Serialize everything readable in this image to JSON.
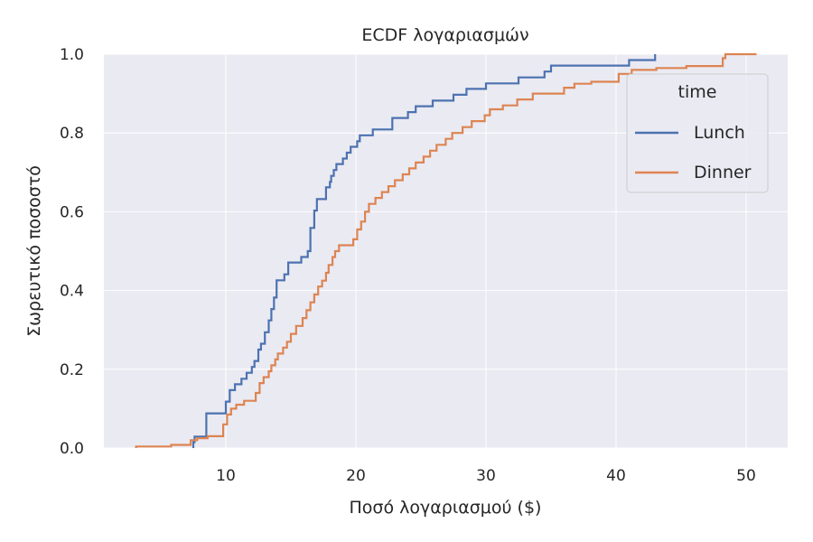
{
  "chart_data": {
    "type": "line",
    "subtype": "ecdf-step",
    "title": "ECDF λογαριασμών",
    "xlabel": "Ποσό λογαριασμού ($)",
    "ylabel": "Σωρευτικό ποσοστό",
    "xlim": [
      0.8,
      53.3
    ],
    "ylim": [
      0.0,
      1.0
    ],
    "xticks": [
      10,
      20,
      30,
      40,
      50
    ],
    "xtick_labels": [
      "10",
      "20",
      "30",
      "40",
      "50"
    ],
    "yticks": [
      0.0,
      0.2,
      0.4,
      0.6,
      0.8,
      1.0
    ],
    "ytick_labels": [
      "0.0",
      "0.2",
      "0.4",
      "0.6",
      "0.8",
      "1.0"
    ],
    "grid": true,
    "background": "#eaeaf2",
    "legend": {
      "title": "time",
      "position": "upper right",
      "entries": [
        {
          "label": "Lunch",
          "color": "#4c72b0"
        },
        {
          "label": "Dinner",
          "color": "#dd8452"
        }
      ]
    },
    "series": [
      {
        "name": "Lunch",
        "color": "#4c72b0",
        "points": [
          [
            7.5,
            0.0
          ],
          [
            7.5,
            0.015
          ],
          [
            7.6,
            0.015
          ],
          [
            7.6,
            0.029
          ],
          [
            8.5,
            0.029
          ],
          [
            8.5,
            0.088
          ],
          [
            10.0,
            0.088
          ],
          [
            10.0,
            0.118
          ],
          [
            10.3,
            0.118
          ],
          [
            10.3,
            0.147
          ],
          [
            10.7,
            0.147
          ],
          [
            10.7,
            0.162
          ],
          [
            11.2,
            0.162
          ],
          [
            11.2,
            0.176
          ],
          [
            11.6,
            0.176
          ],
          [
            11.6,
            0.191
          ],
          [
            12.0,
            0.191
          ],
          [
            12.0,
            0.206
          ],
          [
            12.2,
            0.206
          ],
          [
            12.2,
            0.221
          ],
          [
            12.5,
            0.221
          ],
          [
            12.5,
            0.25
          ],
          [
            12.7,
            0.25
          ],
          [
            12.7,
            0.265
          ],
          [
            13.0,
            0.265
          ],
          [
            13.0,
            0.294
          ],
          [
            13.3,
            0.294
          ],
          [
            13.3,
            0.324
          ],
          [
            13.5,
            0.324
          ],
          [
            13.5,
            0.353
          ],
          [
            13.7,
            0.353
          ],
          [
            13.7,
            0.382
          ],
          [
            13.9,
            0.382
          ],
          [
            13.9,
            0.426
          ],
          [
            14.5,
            0.426
          ],
          [
            14.5,
            0.441
          ],
          [
            14.8,
            0.441
          ],
          [
            14.8,
            0.471
          ],
          [
            15.8,
            0.471
          ],
          [
            15.8,
            0.485
          ],
          [
            16.3,
            0.485
          ],
          [
            16.3,
            0.5
          ],
          [
            16.5,
            0.5
          ],
          [
            16.5,
            0.559
          ],
          [
            16.8,
            0.559
          ],
          [
            16.8,
            0.603
          ],
          [
            17.0,
            0.603
          ],
          [
            17.0,
            0.632
          ],
          [
            17.7,
            0.632
          ],
          [
            17.7,
            0.662
          ],
          [
            18.0,
            0.662
          ],
          [
            18.0,
            0.676
          ],
          [
            18.1,
            0.676
          ],
          [
            18.1,
            0.691
          ],
          [
            18.3,
            0.691
          ],
          [
            18.3,
            0.706
          ],
          [
            18.5,
            0.706
          ],
          [
            18.5,
            0.721
          ],
          [
            19.0,
            0.721
          ],
          [
            19.0,
            0.735
          ],
          [
            19.3,
            0.735
          ],
          [
            19.3,
            0.75
          ],
          [
            19.6,
            0.75
          ],
          [
            19.6,
            0.765
          ],
          [
            20.1,
            0.765
          ],
          [
            20.1,
            0.779
          ],
          [
            20.3,
            0.779
          ],
          [
            20.3,
            0.794
          ],
          [
            21.3,
            0.794
          ],
          [
            21.3,
            0.809
          ],
          [
            22.8,
            0.809
          ],
          [
            22.8,
            0.838
          ],
          [
            24.0,
            0.838
          ],
          [
            24.0,
            0.853
          ],
          [
            24.6,
            0.853
          ],
          [
            24.6,
            0.868
          ],
          [
            25.9,
            0.868
          ],
          [
            25.9,
            0.882
          ],
          [
            27.5,
            0.882
          ],
          [
            27.5,
            0.897
          ],
          [
            28.5,
            0.897
          ],
          [
            28.5,
            0.912
          ],
          [
            30.0,
            0.912
          ],
          [
            30.0,
            0.926
          ],
          [
            32.5,
            0.926
          ],
          [
            32.5,
            0.941
          ],
          [
            34.5,
            0.941
          ],
          [
            34.5,
            0.956
          ],
          [
            35.0,
            0.956
          ],
          [
            35.0,
            0.971
          ],
          [
            41.0,
            0.971
          ],
          [
            41.0,
            0.985
          ],
          [
            43.0,
            0.985
          ],
          [
            43.0,
            1.0
          ]
        ]
      },
      {
        "name": "Dinner",
        "color": "#dd8452",
        "points": [
          [
            3.1,
            0.0
          ],
          [
            3.1,
            0.004
          ],
          [
            5.8,
            0.004
          ],
          [
            5.8,
            0.008
          ],
          [
            7.3,
            0.008
          ],
          [
            7.3,
            0.02
          ],
          [
            7.8,
            0.02
          ],
          [
            7.8,
            0.025
          ],
          [
            8.6,
            0.025
          ],
          [
            8.6,
            0.03
          ],
          [
            9.8,
            0.03
          ],
          [
            9.8,
            0.06
          ],
          [
            10.1,
            0.06
          ],
          [
            10.1,
            0.085
          ],
          [
            10.4,
            0.085
          ],
          [
            10.4,
            0.1
          ],
          [
            10.8,
            0.1
          ],
          [
            10.8,
            0.11
          ],
          [
            11.4,
            0.11
          ],
          [
            11.4,
            0.12
          ],
          [
            12.3,
            0.12
          ],
          [
            12.3,
            0.14
          ],
          [
            12.6,
            0.14
          ],
          [
            12.6,
            0.165
          ],
          [
            12.9,
            0.165
          ],
          [
            12.9,
            0.18
          ],
          [
            13.3,
            0.18
          ],
          [
            13.3,
            0.195
          ],
          [
            13.5,
            0.195
          ],
          [
            13.5,
            0.21
          ],
          [
            13.8,
            0.21
          ],
          [
            13.8,
            0.225
          ],
          [
            14.0,
            0.225
          ],
          [
            14.0,
            0.24
          ],
          [
            14.4,
            0.24
          ],
          [
            14.4,
            0.255
          ],
          [
            14.7,
            0.255
          ],
          [
            14.7,
            0.27
          ],
          [
            15.0,
            0.27
          ],
          [
            15.0,
            0.29
          ],
          [
            15.4,
            0.29
          ],
          [
            15.4,
            0.31
          ],
          [
            15.9,
            0.31
          ],
          [
            15.9,
            0.33
          ],
          [
            16.2,
            0.33
          ],
          [
            16.2,
            0.35
          ],
          [
            16.5,
            0.35
          ],
          [
            16.5,
            0.37
          ],
          [
            16.8,
            0.37
          ],
          [
            16.8,
            0.39
          ],
          [
            17.1,
            0.39
          ],
          [
            17.1,
            0.41
          ],
          [
            17.4,
            0.41
          ],
          [
            17.4,
            0.425
          ],
          [
            17.7,
            0.425
          ],
          [
            17.7,
            0.445
          ],
          [
            17.9,
            0.445
          ],
          [
            17.9,
            0.465
          ],
          [
            18.2,
            0.465
          ],
          [
            18.2,
            0.485
          ],
          [
            18.4,
            0.485
          ],
          [
            18.4,
            0.5
          ],
          [
            18.7,
            0.5
          ],
          [
            18.7,
            0.515
          ],
          [
            19.8,
            0.515
          ],
          [
            19.8,
            0.53
          ],
          [
            20.1,
            0.53
          ],
          [
            20.1,
            0.555
          ],
          [
            20.4,
            0.555
          ],
          [
            20.4,
            0.575
          ],
          [
            20.7,
            0.575
          ],
          [
            20.7,
            0.6
          ],
          [
            21.0,
            0.6
          ],
          [
            21.0,
            0.62
          ],
          [
            21.5,
            0.62
          ],
          [
            21.5,
            0.635
          ],
          [
            22.0,
            0.635
          ],
          [
            22.0,
            0.65
          ],
          [
            22.5,
            0.65
          ],
          [
            22.5,
            0.665
          ],
          [
            23.0,
            0.665
          ],
          [
            23.0,
            0.68
          ],
          [
            23.6,
            0.68
          ],
          [
            23.6,
            0.695
          ],
          [
            24.1,
            0.695
          ],
          [
            24.1,
            0.71
          ],
          [
            24.6,
            0.71
          ],
          [
            24.6,
            0.725
          ],
          [
            25.2,
            0.725
          ],
          [
            25.2,
            0.74
          ],
          [
            25.7,
            0.74
          ],
          [
            25.7,
            0.755
          ],
          [
            26.2,
            0.755
          ],
          [
            26.2,
            0.77
          ],
          [
            26.9,
            0.77
          ],
          [
            26.9,
            0.785
          ],
          [
            27.4,
            0.785
          ],
          [
            27.4,
            0.8
          ],
          [
            28.2,
            0.8
          ],
          [
            28.2,
            0.815
          ],
          [
            28.9,
            0.815
          ],
          [
            28.9,
            0.83
          ],
          [
            29.9,
            0.83
          ],
          [
            29.9,
            0.845
          ],
          [
            30.3,
            0.845
          ],
          [
            30.3,
            0.86
          ],
          [
            31.3,
            0.86
          ],
          [
            31.3,
            0.87
          ],
          [
            32.4,
            0.87
          ],
          [
            32.4,
            0.885
          ],
          [
            33.6,
            0.885
          ],
          [
            33.6,
            0.9
          ],
          [
            36.0,
            0.9
          ],
          [
            36.0,
            0.915
          ],
          [
            36.8,
            0.915
          ],
          [
            36.8,
            0.925
          ],
          [
            38.1,
            0.925
          ],
          [
            38.1,
            0.93
          ],
          [
            40.2,
            0.93
          ],
          [
            40.2,
            0.95
          ],
          [
            41.2,
            0.95
          ],
          [
            41.2,
            0.96
          ],
          [
            43.1,
            0.96
          ],
          [
            43.1,
            0.965
          ],
          [
            45.4,
            0.965
          ],
          [
            45.4,
            0.97
          ],
          [
            48.2,
            0.97
          ],
          [
            48.2,
            0.99
          ],
          [
            48.4,
            0.99
          ],
          [
            48.4,
            1.0
          ],
          [
            50.8,
            1.0
          ]
        ]
      }
    ]
  }
}
